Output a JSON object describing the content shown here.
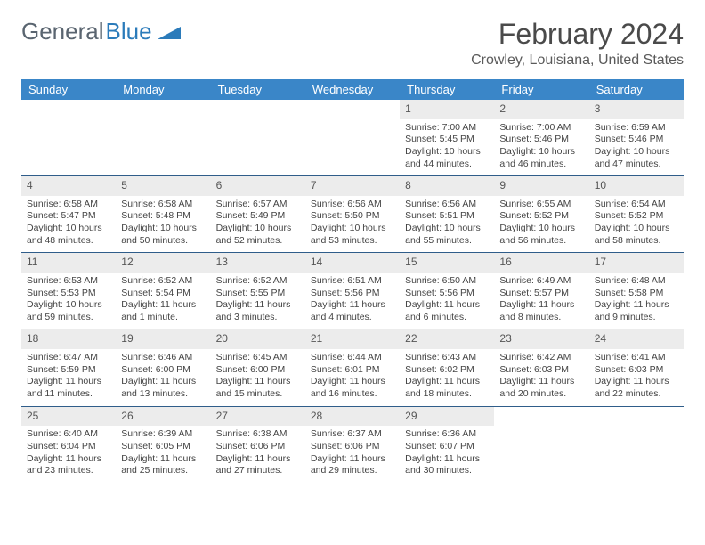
{
  "logo": {
    "part1": "General",
    "part2": "Blue"
  },
  "title": "February 2024",
  "location": "Crowley, Louisiana, United States",
  "colors": {
    "header_bg": "#3a86c8",
    "header_text": "#ffffff",
    "week_divider": "#2f5d8a",
    "daynum_bg": "#ececec",
    "body_text": "#444444",
    "logo_gray": "#5a6570",
    "logo_blue": "#2b7bba"
  },
  "daynames": [
    "Sunday",
    "Monday",
    "Tuesday",
    "Wednesday",
    "Thursday",
    "Friday",
    "Saturday"
  ],
  "weeks": [
    [
      {},
      {},
      {},
      {},
      {
        "n": "1",
        "sr": "Sunrise: 7:00 AM",
        "ss": "Sunset: 5:45 PM",
        "dl1": "Daylight: 10 hours",
        "dl2": "and 44 minutes."
      },
      {
        "n": "2",
        "sr": "Sunrise: 7:00 AM",
        "ss": "Sunset: 5:46 PM",
        "dl1": "Daylight: 10 hours",
        "dl2": "and 46 minutes."
      },
      {
        "n": "3",
        "sr": "Sunrise: 6:59 AM",
        "ss": "Sunset: 5:46 PM",
        "dl1": "Daylight: 10 hours",
        "dl2": "and 47 minutes."
      }
    ],
    [
      {
        "n": "4",
        "sr": "Sunrise: 6:58 AM",
        "ss": "Sunset: 5:47 PM",
        "dl1": "Daylight: 10 hours",
        "dl2": "and 48 minutes."
      },
      {
        "n": "5",
        "sr": "Sunrise: 6:58 AM",
        "ss": "Sunset: 5:48 PM",
        "dl1": "Daylight: 10 hours",
        "dl2": "and 50 minutes."
      },
      {
        "n": "6",
        "sr": "Sunrise: 6:57 AM",
        "ss": "Sunset: 5:49 PM",
        "dl1": "Daylight: 10 hours",
        "dl2": "and 52 minutes."
      },
      {
        "n": "7",
        "sr": "Sunrise: 6:56 AM",
        "ss": "Sunset: 5:50 PM",
        "dl1": "Daylight: 10 hours",
        "dl2": "and 53 minutes."
      },
      {
        "n": "8",
        "sr": "Sunrise: 6:56 AM",
        "ss": "Sunset: 5:51 PM",
        "dl1": "Daylight: 10 hours",
        "dl2": "and 55 minutes."
      },
      {
        "n": "9",
        "sr": "Sunrise: 6:55 AM",
        "ss": "Sunset: 5:52 PM",
        "dl1": "Daylight: 10 hours",
        "dl2": "and 56 minutes."
      },
      {
        "n": "10",
        "sr": "Sunrise: 6:54 AM",
        "ss": "Sunset: 5:52 PM",
        "dl1": "Daylight: 10 hours",
        "dl2": "and 58 minutes."
      }
    ],
    [
      {
        "n": "11",
        "sr": "Sunrise: 6:53 AM",
        "ss": "Sunset: 5:53 PM",
        "dl1": "Daylight: 10 hours",
        "dl2": "and 59 minutes."
      },
      {
        "n": "12",
        "sr": "Sunrise: 6:52 AM",
        "ss": "Sunset: 5:54 PM",
        "dl1": "Daylight: 11 hours",
        "dl2": "and 1 minute."
      },
      {
        "n": "13",
        "sr": "Sunrise: 6:52 AM",
        "ss": "Sunset: 5:55 PM",
        "dl1": "Daylight: 11 hours",
        "dl2": "and 3 minutes."
      },
      {
        "n": "14",
        "sr": "Sunrise: 6:51 AM",
        "ss": "Sunset: 5:56 PM",
        "dl1": "Daylight: 11 hours",
        "dl2": "and 4 minutes."
      },
      {
        "n": "15",
        "sr": "Sunrise: 6:50 AM",
        "ss": "Sunset: 5:56 PM",
        "dl1": "Daylight: 11 hours",
        "dl2": "and 6 minutes."
      },
      {
        "n": "16",
        "sr": "Sunrise: 6:49 AM",
        "ss": "Sunset: 5:57 PM",
        "dl1": "Daylight: 11 hours",
        "dl2": "and 8 minutes."
      },
      {
        "n": "17",
        "sr": "Sunrise: 6:48 AM",
        "ss": "Sunset: 5:58 PM",
        "dl1": "Daylight: 11 hours",
        "dl2": "and 9 minutes."
      }
    ],
    [
      {
        "n": "18",
        "sr": "Sunrise: 6:47 AM",
        "ss": "Sunset: 5:59 PM",
        "dl1": "Daylight: 11 hours",
        "dl2": "and 11 minutes."
      },
      {
        "n": "19",
        "sr": "Sunrise: 6:46 AM",
        "ss": "Sunset: 6:00 PM",
        "dl1": "Daylight: 11 hours",
        "dl2": "and 13 minutes."
      },
      {
        "n": "20",
        "sr": "Sunrise: 6:45 AM",
        "ss": "Sunset: 6:00 PM",
        "dl1": "Daylight: 11 hours",
        "dl2": "and 15 minutes."
      },
      {
        "n": "21",
        "sr": "Sunrise: 6:44 AM",
        "ss": "Sunset: 6:01 PM",
        "dl1": "Daylight: 11 hours",
        "dl2": "and 16 minutes."
      },
      {
        "n": "22",
        "sr": "Sunrise: 6:43 AM",
        "ss": "Sunset: 6:02 PM",
        "dl1": "Daylight: 11 hours",
        "dl2": "and 18 minutes."
      },
      {
        "n": "23",
        "sr": "Sunrise: 6:42 AM",
        "ss": "Sunset: 6:03 PM",
        "dl1": "Daylight: 11 hours",
        "dl2": "and 20 minutes."
      },
      {
        "n": "24",
        "sr": "Sunrise: 6:41 AM",
        "ss": "Sunset: 6:03 PM",
        "dl1": "Daylight: 11 hours",
        "dl2": "and 22 minutes."
      }
    ],
    [
      {
        "n": "25",
        "sr": "Sunrise: 6:40 AM",
        "ss": "Sunset: 6:04 PM",
        "dl1": "Daylight: 11 hours",
        "dl2": "and 23 minutes."
      },
      {
        "n": "26",
        "sr": "Sunrise: 6:39 AM",
        "ss": "Sunset: 6:05 PM",
        "dl1": "Daylight: 11 hours",
        "dl2": "and 25 minutes."
      },
      {
        "n": "27",
        "sr": "Sunrise: 6:38 AM",
        "ss": "Sunset: 6:06 PM",
        "dl1": "Daylight: 11 hours",
        "dl2": "and 27 minutes."
      },
      {
        "n": "28",
        "sr": "Sunrise: 6:37 AM",
        "ss": "Sunset: 6:06 PM",
        "dl1": "Daylight: 11 hours",
        "dl2": "and 29 minutes."
      },
      {
        "n": "29",
        "sr": "Sunrise: 6:36 AM",
        "ss": "Sunset: 6:07 PM",
        "dl1": "Daylight: 11 hours",
        "dl2": "and 30 minutes."
      },
      {},
      {}
    ]
  ]
}
